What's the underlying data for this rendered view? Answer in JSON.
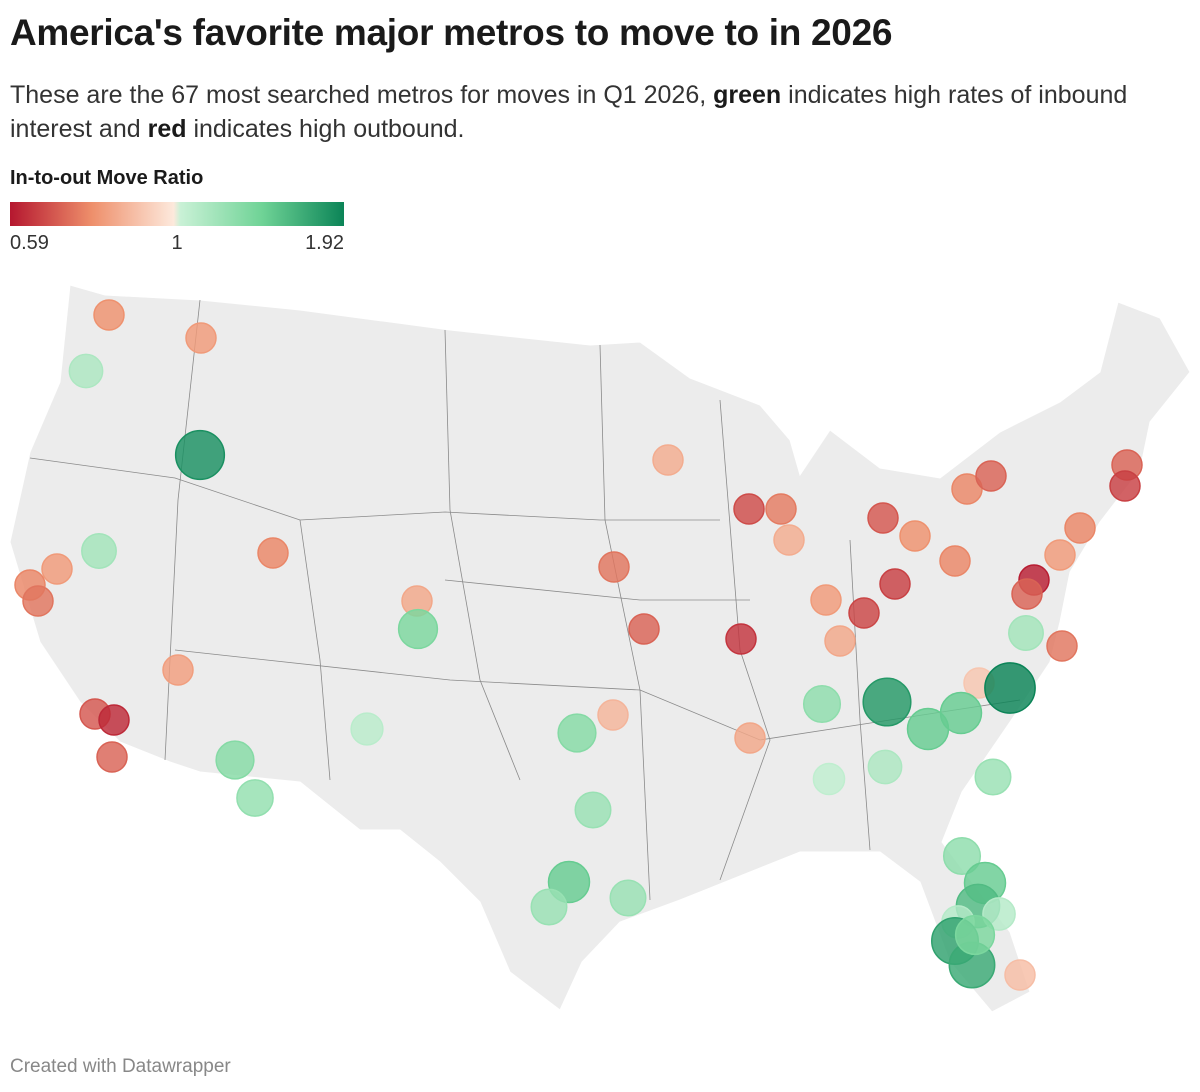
{
  "header": {
    "title": "America's favorite major metros to move to in 2026",
    "subtitle": [
      "These are the 67 most searched metros for moves in Q1 2026, ",
      "green",
      " indicates high rates of inbound interest and ",
      "red",
      " indicates high outbound."
    ]
  },
  "legend": {
    "title": "In-to-out Move Ratio",
    "min": 0.59,
    "mid": 1,
    "max": 1.92,
    "colors_low": [
      "#b5172f",
      "#ee8f6b",
      "#fde9dc"
    ],
    "colors_high": [
      "#c9f1d6",
      "#6fd396",
      "#0b8457"
    ]
  },
  "map": {
    "ratios": [
      0.8,
      0.82,
      1.15,
      1.85,
      1.2,
      0.82,
      0.78,
      0.75,
      0.78,
      0.85,
      1.4,
      0.83,
      0.7,
      0.62,
      0.72,
      1.35,
      1.28,
      1.08,
      1.35,
      0.88,
      1.25,
      1.5,
      1.25,
      1.25,
      0.86,
      0.75,
      0.72,
      0.68,
      0.76,
      0.86,
      0.64,
      0.82,
      0.85,
      0.67,
      0.66,
      0.7,
      0.8,
      0.78,
      0.78,
      0.72,
      0.72,
      0.66,
      0.78,
      0.82,
      0.6,
      0.72,
      1.2,
      0.75,
      0.92,
      1.92,
      1.8,
      1.3,
      1.5,
      1.5,
      0.85,
      1.05,
      1.15,
      1.25,
      1.3,
      1.5,
      1.6,
      1.1,
      1.1,
      1.75,
      1.7,
      0.9,
      1.4
    ]
  },
  "footer": "Created with Datawrapper"
}
